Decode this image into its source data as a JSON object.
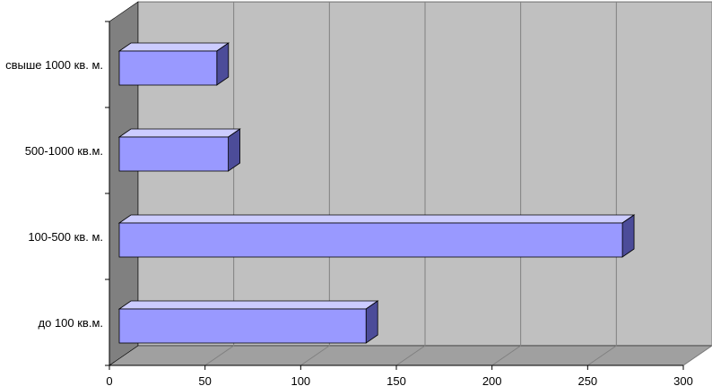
{
  "chart_data": {
    "type": "bar",
    "orientation": "horizontal",
    "style": "3d",
    "categories": [
      "до 100 кв.м.",
      "100-500 кв. м.",
      "500-1000 кв.м.",
      "свыше 1000 кв. м."
    ],
    "values": [
      129,
      263,
      57,
      51
    ],
    "x_ticks": [
      "0",
      "50",
      "100",
      "150",
      "200",
      "250",
      "300"
    ],
    "xlim": [
      0,
      300
    ],
    "title": "",
    "xlabel": "",
    "ylabel": "",
    "grid": true,
    "legend": "none",
    "colors": {
      "bar_front": "#9999ff",
      "bar_top": "#ccccff",
      "bar_side": "#4c4c99",
      "bar_edge": "#000000",
      "plot_wall": "#c0c0c0",
      "side_wall": "#808080",
      "floor": "#a0a0a0",
      "grid": "#808080"
    }
  }
}
